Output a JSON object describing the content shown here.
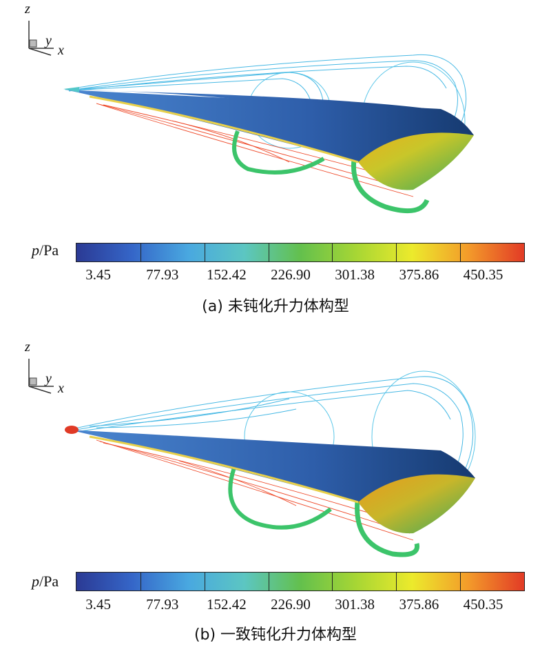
{
  "axis_triad": {
    "z": "z",
    "y": "y",
    "x": "x"
  },
  "colorbar": {
    "variable": "p",
    "unit": "/Pa",
    "ticks": [
      "3.45",
      "77.93",
      "152.42",
      "226.90",
      "301.38",
      "375.86",
      "450.35"
    ],
    "colors": [
      "#2b3a94",
      "#3566c8",
      "#49a8e0",
      "#5cc6c2",
      "#63c04d",
      "#a7d634",
      "#ecea2c",
      "#f39b2a",
      "#e23b26"
    ]
  },
  "panels": [
    {
      "caption": "(a) 未钝化升力体构型",
      "nose_color": "#52c7c9"
    },
    {
      "caption": "(b) 一致钝化升力体构型",
      "nose_color": "#e03a26"
    }
  ]
}
